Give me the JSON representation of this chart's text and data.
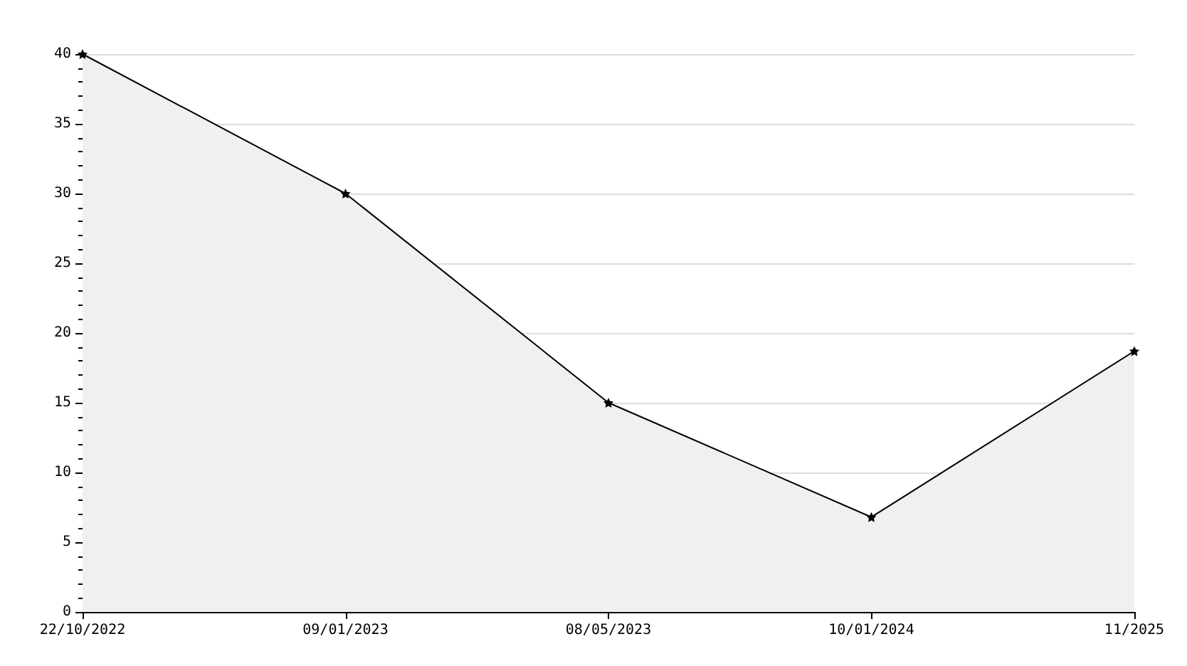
{
  "chart_data": {
    "type": "area",
    "categories": [
      "22/10/2022",
      "09/01/2023",
      "08/05/2023",
      "10/01/2024",
      "11/2025"
    ],
    "series": [
      {
        "color": "#000000",
        "values": [
          40,
          30,
          15,
          6.8,
          18.7
        ]
      }
    ],
    "ylim": [
      0,
      40
    ],
    "yticks": [
      0,
      5,
      10,
      15,
      20,
      25,
      30,
      35,
      40
    ],
    "grid": "y",
    "marker": "star",
    "line_style": "solid"
  }
}
